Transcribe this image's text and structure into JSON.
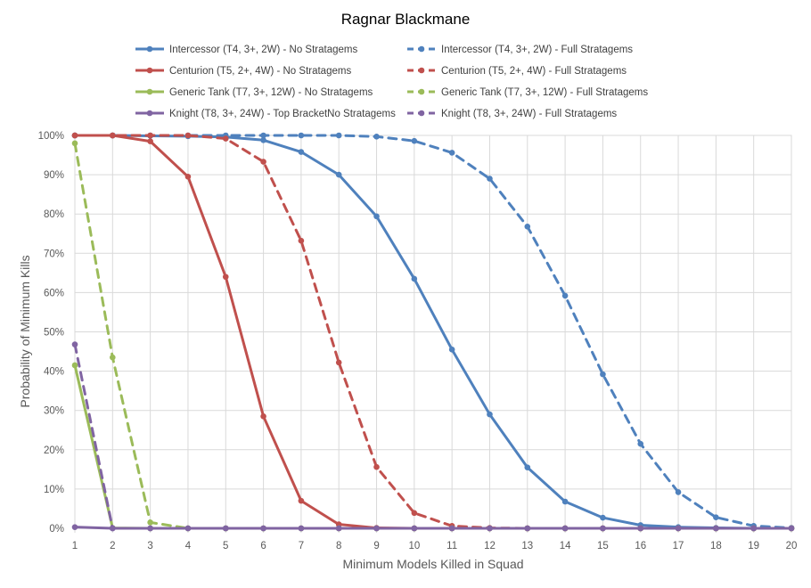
{
  "chart_data": {
    "type": "line",
    "title": "Ragnar Blackmane",
    "xlabel": "Minimum Models Killed in Squad",
    "ylabel": "Probability of Minimum Kills",
    "x": [
      1,
      2,
      3,
      4,
      5,
      6,
      7,
      8,
      9,
      10,
      11,
      12,
      13,
      14,
      15,
      16,
      17,
      18,
      19,
      20
    ],
    "xlim": [
      1,
      20
    ],
    "ylim": [
      0,
      100
    ],
    "y_ticks": [
      "0%",
      "10%",
      "20%",
      "30%",
      "40%",
      "50%",
      "60%",
      "70%",
      "80%",
      "90%",
      "100%"
    ],
    "y_unit": "%",
    "grid": true,
    "legend_position": "top",
    "series": [
      {
        "name": "Intercessor (T4, 3+, 2W) - No Stratagems",
        "color": "#4f81bd",
        "dash": "solid",
        "values": [
          100,
          100,
          99.9,
          99.8,
          99.6,
          98.8,
          95.8,
          90.0,
          79.4,
          63.5,
          45.5,
          29.0,
          15.5,
          6.8,
          2.7,
          0.8,
          0.3,
          0.1,
          0,
          0
        ]
      },
      {
        "name": "Intercessor (T4, 3+, 2W) - Full Stratagems",
        "color": "#4f81bd",
        "dash": "dashed",
        "values": [
          100,
          100,
          100,
          100,
          100,
          100,
          100,
          100,
          99.7,
          98.6,
          95.6,
          89.0,
          76.8,
          59.2,
          39.2,
          21.5,
          9.2,
          2.8,
          0.6,
          0.1
        ]
      },
      {
        "name": "Centurion (T5, 2+, 4W) - No Stratagems",
        "color": "#c0504d",
        "dash": "solid",
        "values": [
          100,
          100,
          98.5,
          89.5,
          64.0,
          28.5,
          7.0,
          1.0,
          0.1,
          0,
          0,
          0,
          0,
          0,
          0,
          0,
          0,
          0,
          0,
          0
        ]
      },
      {
        "name": "Centurion (T5, 2+, 4W) - Full Stratagems",
        "color": "#c0504d",
        "dash": "dashed",
        "values": [
          100,
          100,
          100,
          100,
          99.2,
          93.3,
          73.2,
          42.2,
          15.6,
          3.9,
          0.6,
          0.1,
          0,
          0,
          0,
          0,
          0,
          0,
          0,
          0
        ]
      },
      {
        "name": "Generic Tank (T7, 3+, 12W) - No Stratagems",
        "color": "#9bbb59",
        "dash": "solid",
        "values": [
          41.5,
          0.1,
          0,
          0,
          0,
          0,
          0,
          0,
          0,
          0,
          0,
          0,
          0,
          0,
          0,
          0,
          0,
          0,
          0,
          0
        ]
      },
      {
        "name": "Generic Tank (T7, 3+, 12W) - Full Stratagems",
        "color": "#9bbb59",
        "dash": "dashed",
        "values": [
          98.0,
          43.5,
          1.5,
          0,
          0,
          0,
          0,
          0,
          0,
          0,
          0,
          0,
          0,
          0,
          0,
          0,
          0,
          0,
          0,
          0
        ]
      },
      {
        "name": "Knight (T8, 3+, 24W) - Top BracketNo Stratagems",
        "color": "#8064a2",
        "dash": "solid",
        "values": [
          0.3,
          0,
          0,
          0,
          0,
          0,
          0,
          0,
          0,
          0,
          0,
          0,
          0,
          0,
          0,
          0,
          0,
          0,
          0,
          0
        ]
      },
      {
        "name": "Knight (T8, 3+, 24W) - Full Stratagems",
        "color": "#8064a2",
        "dash": "dashed",
        "values": [
          46.8,
          0,
          0,
          0,
          0,
          0,
          0,
          0,
          0,
          0,
          0,
          0,
          0,
          0,
          0,
          0,
          0,
          0,
          0,
          0
        ]
      }
    ]
  }
}
